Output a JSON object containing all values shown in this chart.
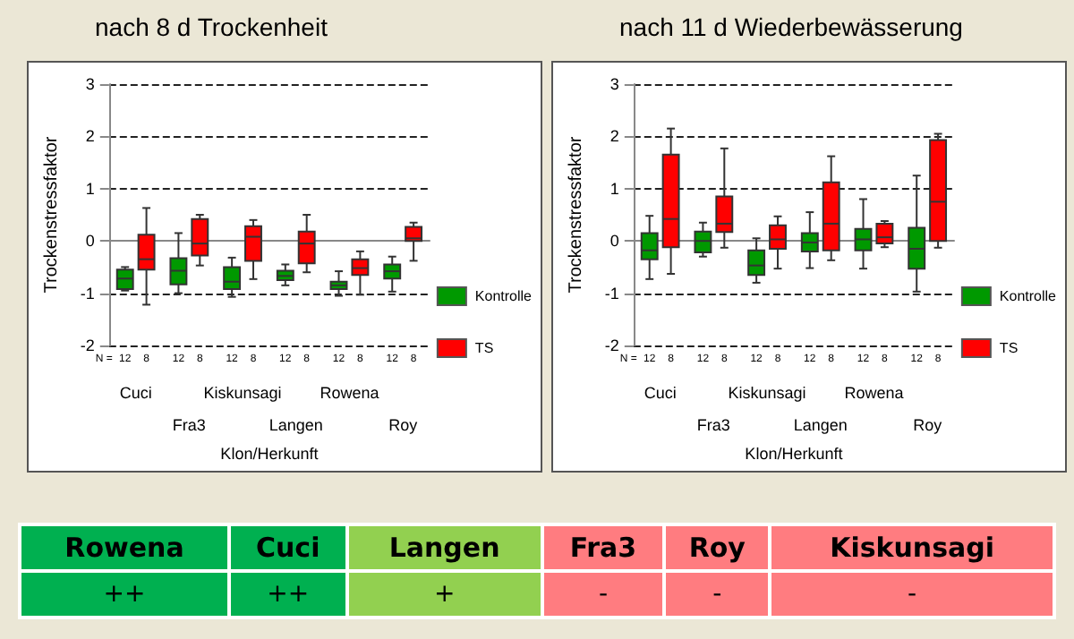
{
  "chart_data": [
    {
      "type": "box",
      "title": "nach 8 d Trockenheit",
      "xlabel": "Klon/Herkunft",
      "ylabel": "Trockenstressfaktor",
      "categories": [
        "Cuci",
        "Fra3",
        "Kiskunsagi",
        "Langen",
        "Rowena",
        "Roy"
      ],
      "ylim": [
        -2,
        3
      ],
      "yticks": [
        -2,
        -1,
        0,
        1,
        2,
        3
      ],
      "grid": "y",
      "line_style": "dashed",
      "legend": "right",
      "annotations": [
        "N =",
        "12",
        "8",
        "12",
        "8",
        "12",
        "8",
        "12",
        "8",
        "12",
        "8",
        "12",
        "8"
      ],
      "series": [
        {
          "name": "Kontrolle",
          "color": "#009900",
          "boxes": [
            {
              "low": -0.95,
              "q1": -0.92,
              "median": -0.72,
              "q3": -0.55,
              "high": -0.5
            },
            {
              "low": -1.0,
              "q1": -0.83,
              "median": -0.57,
              "q3": -0.33,
              "high": 0.15
            },
            {
              "low": -1.07,
              "q1": -0.92,
              "median": -0.78,
              "q3": -0.5,
              "high": -0.32
            },
            {
              "low": -0.85,
              "q1": -0.75,
              "median": -0.67,
              "q3": -0.57,
              "high": -0.45
            },
            {
              "low": -1.05,
              "q1": -0.92,
              "median": -0.85,
              "q3": -0.78,
              "high": -0.58
            },
            {
              "low": -0.97,
              "q1": -0.72,
              "median": -0.58,
              "q3": -0.45,
              "high": -0.3
            }
          ]
        },
        {
          "name": "TS",
          "color": "#ff0000",
          "boxes": [
            {
              "low": -1.22,
              "q1": -0.55,
              "median": -0.35,
              "q3": 0.12,
              "high": 0.63
            },
            {
              "low": -0.47,
              "q1": -0.28,
              "median": -0.05,
              "q3": 0.42,
              "high": 0.5
            },
            {
              "low": -0.73,
              "q1": -0.38,
              "median": 0.08,
              "q3": 0.28,
              "high": 0.4
            },
            {
              "low": -0.6,
              "q1": -0.43,
              "median": -0.05,
              "q3": 0.18,
              "high": 0.5
            },
            {
              "low": -1.03,
              "q1": -0.65,
              "median": -0.52,
              "q3": -0.35,
              "high": -0.2
            },
            {
              "low": -0.38,
              "q1": 0.0,
              "median": 0.05,
              "q3": 0.27,
              "high": 0.35
            }
          ]
        }
      ]
    },
    {
      "type": "box",
      "title": "nach 11 d Wiederbewässerung",
      "xlabel": "Klon/Herkunft",
      "ylabel": "Trockenstressfaktor",
      "categories": [
        "Cuci",
        "Fra3",
        "Kiskunsagi",
        "Langen",
        "Rowena",
        "Roy"
      ],
      "ylim": [
        -2,
        3
      ],
      "yticks": [
        -2,
        -1,
        0,
        1,
        2,
        3
      ],
      "grid": "y",
      "line_style": "dashed",
      "legend": "right",
      "annotations": [
        "N =",
        "12",
        "8",
        "12",
        "8",
        "12",
        "8",
        "12",
        "8",
        "12",
        "8",
        "12",
        "8"
      ],
      "series": [
        {
          "name": "Kontrolle",
          "color": "#009900",
          "boxes": [
            {
              "low": -0.73,
              "q1": -0.35,
              "median": -0.18,
              "q3": 0.15,
              "high": 0.48
            },
            {
              "low": -0.3,
              "q1": -0.22,
              "median": 0.0,
              "q3": 0.18,
              "high": 0.35
            },
            {
              "low": -0.8,
              "q1": -0.65,
              "median": -0.47,
              "q3": -0.18,
              "high": 0.05
            },
            {
              "low": -0.52,
              "q1": -0.2,
              "median": -0.03,
              "q3": 0.15,
              "high": 0.55
            },
            {
              "low": -0.53,
              "q1": -0.18,
              "median": 0.03,
              "q3": 0.23,
              "high": 0.8
            },
            {
              "low": -0.97,
              "q1": -0.53,
              "median": -0.15,
              "q3": 0.25,
              "high": 1.25
            }
          ]
        },
        {
          "name": "TS",
          "color": "#ff0000",
          "boxes": [
            {
              "low": -0.63,
              "q1": -0.12,
              "median": 0.42,
              "q3": 1.65,
              "high": 2.15
            },
            {
              "low": -0.13,
              "q1": 0.17,
              "median": 0.33,
              "q3": 0.85,
              "high": 1.77
            },
            {
              "low": -0.53,
              "q1": -0.15,
              "median": 0.03,
              "q3": 0.3,
              "high": 0.47
            },
            {
              "low": -0.37,
              "q1": -0.18,
              "median": 0.33,
              "q3": 1.12,
              "high": 1.62
            },
            {
              "low": -0.12,
              "q1": -0.05,
              "median": 0.07,
              "q3": 0.33,
              "high": 0.38
            },
            {
              "low": -0.13,
              "q1": 0.0,
              "median": 0.75,
              "q3": 1.93,
              "high": 2.05
            }
          ]
        }
      ]
    },
    {
      "type": "other",
      "categories": [
        "Rowena",
        "Cuci",
        "Langen",
        "Fra3",
        "Roy",
        "Kiskunsagi"
      ],
      "cell_labels": [
        [
          "++",
          "++",
          "+",
          "-",
          "-",
          "-"
        ]
      ],
      "colors": [
        "#00b050",
        "#00b050",
        "#92d050",
        "#ff7c80",
        "#ff7c80",
        "#ff7c80"
      ]
    }
  ]
}
